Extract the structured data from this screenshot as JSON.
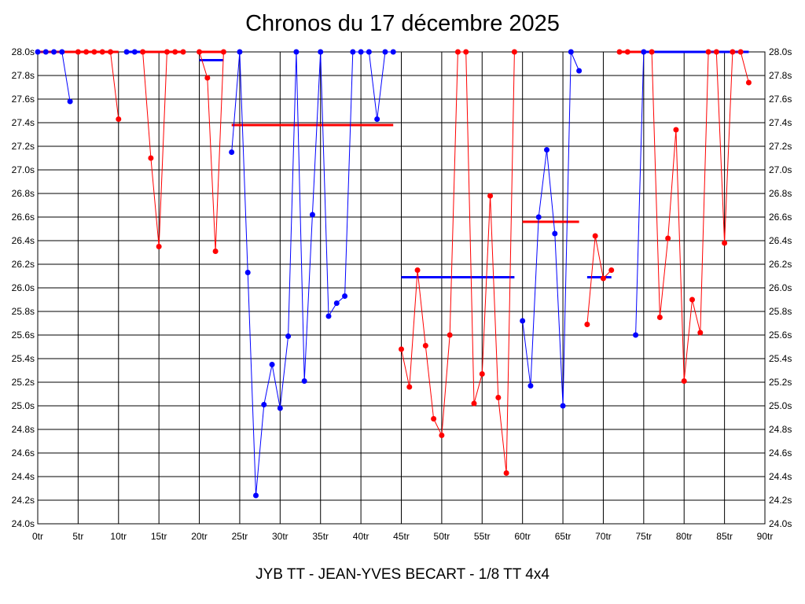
{
  "title": "Chronos du 17 décembre 2025",
  "footer": "JYB TT - JEAN-YVES BECART - 1/8 TT 4x4",
  "chart_data": {
    "type": "line",
    "title": "Chronos du 17 décembre 2025",
    "xlim": [
      0,
      90
    ],
    "ylim": [
      24.0,
      28.0
    ],
    "grid": true,
    "x_ticks": [
      {
        "value": 0,
        "label": "0tr"
      },
      {
        "value": 5,
        "label": "5tr"
      },
      {
        "value": 10,
        "label": "10tr"
      },
      {
        "value": 15,
        "label": "15tr"
      },
      {
        "value": 20,
        "label": "20tr"
      },
      {
        "value": 25,
        "label": "25tr"
      },
      {
        "value": 30,
        "label": "30tr"
      },
      {
        "value": 35,
        "label": "35tr"
      },
      {
        "value": 40,
        "label": "40tr"
      },
      {
        "value": 45,
        "label": "45tr"
      },
      {
        "value": 50,
        "label": "50tr"
      },
      {
        "value": 55,
        "label": "55tr"
      },
      {
        "value": 60,
        "label": "60tr"
      },
      {
        "value": 65,
        "label": "65tr"
      },
      {
        "value": 70,
        "label": "70tr"
      },
      {
        "value": 75,
        "label": "75tr"
      },
      {
        "value": 80,
        "label": "80tr"
      },
      {
        "value": 85,
        "label": "85tr"
      },
      {
        "value": 90,
        "label": "90tr"
      }
    ],
    "y_ticks": [
      {
        "value": 24.0,
        "label": "24.0s"
      },
      {
        "value": 24.2,
        "label": "24.2s"
      },
      {
        "value": 24.4,
        "label": "24.4s"
      },
      {
        "value": 24.6,
        "label": "24.6s"
      },
      {
        "value": 24.8,
        "label": "24.8s"
      },
      {
        "value": 25.0,
        "label": "25.0s"
      },
      {
        "value": 25.2,
        "label": "25.2s"
      },
      {
        "value": 25.4,
        "label": "25.4s"
      },
      {
        "value": 25.6,
        "label": "25.6s"
      },
      {
        "value": 25.8,
        "label": "25.8s"
      },
      {
        "value": 26.0,
        "label": "26.0s"
      },
      {
        "value": 26.2,
        "label": "26.2s"
      },
      {
        "value": 26.4,
        "label": "26.4s"
      },
      {
        "value": 26.6,
        "label": "26.6s"
      },
      {
        "value": 26.8,
        "label": "26.8s"
      },
      {
        "value": 27.0,
        "label": "27.0s"
      },
      {
        "value": 27.2,
        "label": "27.2s"
      },
      {
        "value": 27.4,
        "label": "27.4s"
      },
      {
        "value": 27.6,
        "label": "27.6s"
      },
      {
        "value": 27.8,
        "label": "27.8s"
      },
      {
        "value": 28.0,
        "label": "28.0s"
      }
    ],
    "segments": [
      {
        "color": "#0000ff",
        "points": [
          [
            0,
            28.0
          ],
          [
            1,
            28.0
          ],
          [
            2,
            28.0
          ],
          [
            3,
            28.0
          ],
          [
            4,
            27.58
          ]
        ],
        "avg": {
          "x": [
            0,
            4
          ],
          "y": 28.0
        }
      },
      {
        "color": "#ff0000",
        "points": [
          [
            5,
            28.0
          ],
          [
            6,
            28.0
          ],
          [
            7,
            28.0
          ],
          [
            8,
            28.0
          ],
          [
            9,
            28.0
          ],
          [
            10,
            27.43
          ]
        ],
        "avg": {
          "x": [
            0,
            10
          ],
          "y": 28.0
        }
      },
      {
        "color": "#0000ff",
        "points": [
          [
            11,
            28.0
          ],
          [
            12,
            28.0
          ]
        ],
        "avg": {
          "x": [
            11,
            18
          ],
          "y": 28.0
        }
      },
      {
        "color": "#ff0000",
        "points": [
          [
            13,
            28.0
          ],
          [
            14,
            27.1
          ],
          [
            15,
            26.35
          ],
          [
            16,
            28.0
          ],
          [
            17,
            28.0
          ],
          [
            18,
            28.0
          ]
        ],
        "avg": {
          "x": [
            13,
            18
          ],
          "y": 28.0
        }
      },
      {
        "color": "#ff0000",
        "points": [
          [
            20,
            28.0
          ],
          [
            21,
            27.78
          ],
          [
            22,
            26.31
          ],
          [
            23,
            28.0
          ]
        ],
        "avg": {
          "x": [
            20,
            23
          ],
          "y": 28.0
        }
      },
      {
        "color": "#0000ff",
        "points": [
          [
            24,
            27.15
          ],
          [
            25,
            28.0
          ],
          [
            26,
            26.13
          ],
          [
            27,
            24.24
          ],
          [
            28,
            25.01
          ],
          [
            29,
            25.35
          ],
          [
            30,
            24.98
          ],
          [
            31,
            25.59
          ],
          [
            32,
            28.0
          ],
          [
            33,
            25.21
          ],
          [
            34,
            26.62
          ],
          [
            35,
            28.0
          ],
          [
            36,
            25.76
          ],
          [
            37,
            25.87
          ],
          [
            38,
            25.93
          ],
          [
            39,
            28.0
          ],
          [
            40,
            28.0
          ],
          [
            41,
            28.0
          ],
          [
            42,
            27.43
          ],
          [
            43,
            28.0
          ],
          [
            44,
            28.0
          ]
        ],
        "avg": {
          "x": [
            20,
            23
          ],
          "y": 27.93
        }
      },
      {
        "color": "#ff0000",
        "points": [],
        "avg": {
          "x": [
            24,
            44
          ],
          "y": 27.38
        }
      },
      {
        "color": "#ff0000",
        "points": [
          [
            45,
            25.48
          ],
          [
            46,
            25.16
          ],
          [
            47,
            26.15
          ],
          [
            48,
            25.51
          ],
          [
            49,
            24.89
          ],
          [
            50,
            24.75
          ],
          [
            51,
            25.6
          ],
          [
            52,
            28.0
          ],
          [
            53,
            28.0
          ],
          [
            54,
            25.02
          ],
          [
            55,
            25.27
          ],
          [
            56,
            26.78
          ],
          [
            57,
            25.07
          ],
          [
            58,
            24.43
          ],
          [
            59,
            28.0
          ]
        ],
        "avg": {
          "x": [
            0,
            0
          ],
          "y": 0
        }
      },
      {
        "color": "#0000ff",
        "points": [],
        "avg": {
          "x": [
            45,
            59
          ],
          "y": 26.09
        }
      },
      {
        "color": "#0000ff",
        "points": [
          [
            60,
            25.72
          ],
          [
            61,
            25.17
          ],
          [
            62,
            26.6
          ],
          [
            63,
            27.17
          ],
          [
            64,
            26.46
          ],
          [
            65,
            25.0
          ],
          [
            66,
            28.0
          ],
          [
            67,
            27.84
          ]
        ],
        "avg": {
          "x": [
            0,
            0
          ],
          "y": 0
        }
      },
      {
        "color": "#ff0000",
        "points": [],
        "avg": {
          "x": [
            60,
            67
          ],
          "y": 26.56
        }
      },
      {
        "color": "#ff0000",
        "points": [
          [
            68,
            25.69
          ],
          [
            69,
            26.44
          ],
          [
            70,
            26.08
          ],
          [
            71,
            26.15
          ]
        ],
        "avg": {
          "x": [
            0,
            0
          ],
          "y": 0
        }
      },
      {
        "color": "#0000ff",
        "points": [],
        "avg": {
          "x": [
            68,
            71
          ],
          "y": 26.09
        }
      },
      {
        "color": "#0000ff",
        "points": [
          [
            74,
            25.6
          ],
          [
            75,
            28.0
          ]
        ],
        "avg": {
          "x": [
            72,
            88
          ],
          "y": 28.0
        }
      },
      {
        "color": "#ff0000",
        "points": [
          [
            72,
            28.0
          ],
          [
            73,
            28.0
          ]
        ],
        "avg": {
          "x": [
            72,
            75
          ],
          "y": 28.0
        }
      },
      {
        "color": "#ff0000",
        "points": [
          [
            76,
            28.0
          ],
          [
            77,
            25.75
          ],
          [
            78,
            26.42
          ],
          [
            79,
            27.34
          ],
          [
            80,
            25.21
          ],
          [
            81,
            25.9
          ],
          [
            82,
            25.62
          ],
          [
            83,
            28.0
          ],
          [
            84,
            28.0
          ],
          [
            85,
            26.38
          ],
          [
            86,
            28.0
          ],
          [
            87,
            28.0
          ],
          [
            88,
            27.74
          ]
        ],
        "avg": {
          "x": [
            0,
            0
          ],
          "y": 0
        }
      }
    ]
  }
}
